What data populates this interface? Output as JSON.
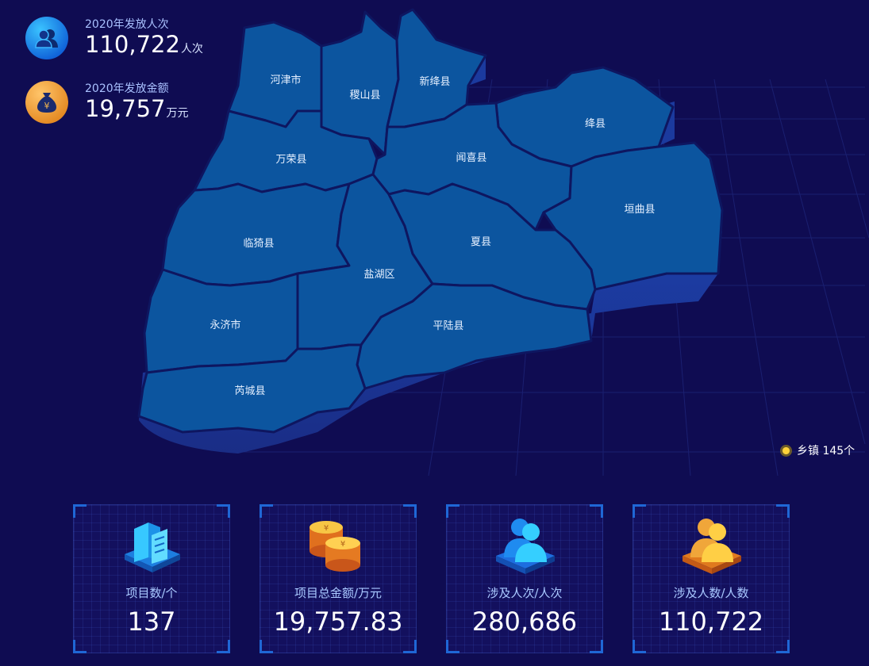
{
  "stats": [
    {
      "label": "2020年发放人次",
      "value": "110,722",
      "unit": "人次",
      "icon": "people-icon"
    },
    {
      "label": "2020年发放金额",
      "value": "19,757",
      "unit": "万元",
      "icon": "money-bag-icon"
    }
  ],
  "map": {
    "regions": [
      "河津市",
      "稷山县",
      "新绛县",
      "绛县",
      "万荣县",
      "闻喜县",
      "垣曲县",
      "临猗县",
      "盐湖区",
      "夏县",
      "永济市",
      "平陆县",
      "芮城县"
    ]
  },
  "legend": {
    "label": "乡镇 145个"
  },
  "cards": [
    {
      "label": "项目数/个",
      "value": "137",
      "icon": "building-icon"
    },
    {
      "label": "项目总金额/万元",
      "value": "19,757.83",
      "icon": "coins-icon"
    },
    {
      "label": "涉及人次/人次",
      "value": "280,686",
      "icon": "people-blue-icon"
    },
    {
      "label": "涉及人数/人数",
      "value": "110,722",
      "icon": "people-gold-icon"
    }
  ]
}
